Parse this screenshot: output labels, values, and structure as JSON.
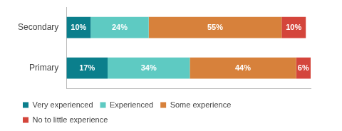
{
  "chart_data": {
    "type": "bar",
    "orientation": "horizontal",
    "stacked": true,
    "data_labels": true,
    "tick_labels": "y",
    "grid": false,
    "legend": "bottom",
    "categories": [
      "Secondary",
      "Primary"
    ],
    "xlim": [
      0,
      101
    ],
    "series": [
      {
        "name": "Very experienced",
        "color": "#0b7f8c",
        "values": [
          10,
          17
        ],
        "value_labels": [
          "10%",
          "17%"
        ]
      },
      {
        "name": "Experienced",
        "color": "#5ecac2",
        "values": [
          24,
          34
        ],
        "value_labels": [
          "24%",
          "34%"
        ]
      },
      {
        "name": "Some experience",
        "color": "#d7813b",
        "values": [
          55,
          44
        ],
        "value_labels": [
          "55%",
          "44%"
        ]
      },
      {
        "name": "No to little experience",
        "color": "#d4453b",
        "values": [
          10,
          6
        ],
        "value_labels": [
          "10%",
          "6%"
        ]
      }
    ]
  }
}
